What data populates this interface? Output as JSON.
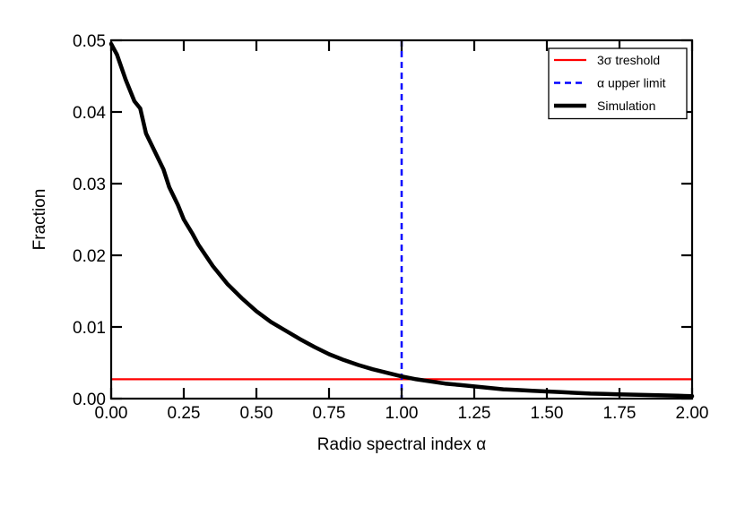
{
  "chart_data": {
    "type": "line",
    "title": "",
    "xlabel": "Radio spectral index α",
    "ylabel": "Fraction",
    "xlim": [
      0,
      2
    ],
    "ylim": [
      0,
      0.05
    ],
    "grid": false,
    "legend_position": "top-right",
    "x_ticks": [
      "0.00",
      "0.25",
      "0.50",
      "0.75",
      "1.00",
      "1.25",
      "1.50",
      "1.75",
      "2.00"
    ],
    "x_tick_values": [
      0,
      0.25,
      0.5,
      0.75,
      1.0,
      1.25,
      1.5,
      1.75,
      2.0
    ],
    "y_ticks": [
      "0.00",
      "0.01",
      "0.02",
      "0.03",
      "0.04",
      "0.05"
    ],
    "y_tick_values": [
      0,
      0.01,
      0.02,
      0.03,
      0.04,
      0.05
    ],
    "series": [
      {
        "name": "3σ treshold",
        "kind": "hline",
        "color": "#ff0000",
        "style": "solid",
        "y": 0.0027
      },
      {
        "name": "α upper limit",
        "kind": "vline",
        "color": "#0000ff",
        "style": "dashed",
        "x": 1.0
      },
      {
        "name": "Simulation",
        "kind": "line",
        "color": "#000000",
        "style": "solid",
        "x": [
          0.0,
          0.02,
          0.05,
          0.08,
          0.1,
          0.12,
          0.15,
          0.18,
          0.2,
          0.23,
          0.25,
          0.28,
          0.3,
          0.35,
          0.4,
          0.45,
          0.5,
          0.55,
          0.6,
          0.65,
          0.7,
          0.75,
          0.8,
          0.85,
          0.9,
          0.95,
          1.0,
          1.05,
          1.1,
          1.15,
          1.2,
          1.25,
          1.3,
          1.35,
          1.4,
          1.45,
          1.5,
          1.55,
          1.6,
          1.65,
          1.7,
          1.75,
          1.8,
          1.85,
          1.9,
          1.95,
          2.0
        ],
        "y": [
          0.0495,
          0.048,
          0.0445,
          0.0415,
          0.0405,
          0.037,
          0.0345,
          0.032,
          0.0295,
          0.027,
          0.025,
          0.023,
          0.0215,
          0.0185,
          0.016,
          0.014,
          0.0122,
          0.0107,
          0.0095,
          0.0083,
          0.0072,
          0.0062,
          0.0054,
          0.0047,
          0.0041,
          0.0036,
          0.0031,
          0.0027,
          0.0024,
          0.0021,
          0.0019,
          0.0017,
          0.0015,
          0.0013,
          0.0012,
          0.0011,
          0.001,
          0.0009,
          0.0008,
          0.0007,
          0.00065,
          0.0006,
          0.00055,
          0.0005,
          0.00045,
          0.0004,
          0.00035
        ]
      }
    ]
  }
}
